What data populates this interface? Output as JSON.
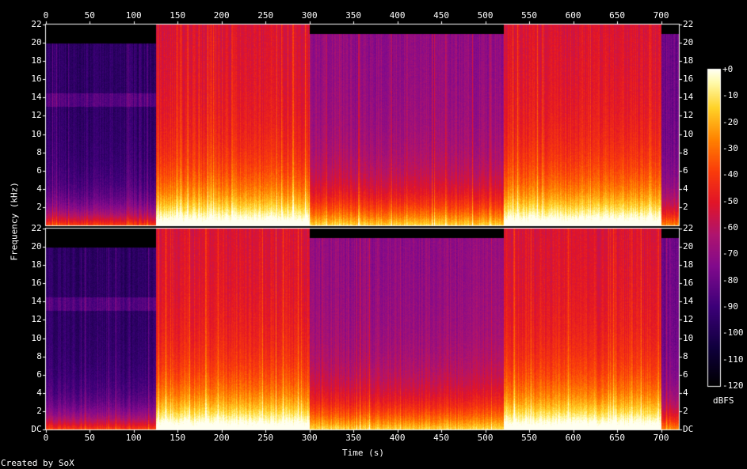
{
  "chart_data": {
    "type": "heatmap",
    "credit": "Created by SoX",
    "xlabel": "Time (s)",
    "ylabel": "Frequency (kHz)",
    "colorbar_label": "dBFS",
    "x_ticks": [
      "0",
      "50",
      "100",
      "150",
      "200",
      "250",
      "300",
      "350",
      "400",
      "450",
      "500",
      "550",
      "600",
      "650",
      "700"
    ],
    "x_range": [
      0,
      720
    ],
    "y_ticks_left": [
      "22",
      "20",
      "18",
      "16",
      "14",
      "12",
      "10",
      "8",
      "6",
      "4",
      "2"
    ],
    "y_ticks_left_bottom": [
      "22",
      "20",
      "18",
      "16",
      "14",
      "12",
      "10",
      "8",
      "6",
      "4",
      "2",
      "DC"
    ],
    "y_ticks_right_top": [
      "22",
      "20",
      "18",
      "16",
      "14",
      "12",
      "10",
      "8",
      "6",
      "4",
      "2"
    ],
    "y_ticks_right_bottom": [
      "22",
      "20",
      "18",
      "16",
      "14",
      "12",
      "10",
      "8",
      "6",
      "4",
      "2",
      "DC"
    ],
    "y_range_khz": [
      0,
      22
    ],
    "channels": 2,
    "colorbar_ticks": [
      "+0",
      "-10",
      "-20",
      "-30",
      "-40",
      "-50",
      "-60",
      "-70",
      "-80",
      "-90",
      "-100",
      "-110",
      "-120"
    ],
    "colorbar_range_db": [
      -120,
      0
    ],
    "segments": [
      {
        "start": 0,
        "end": 125,
        "level": "quiet",
        "cutoff_khz": 20
      },
      {
        "start": 125,
        "end": 300,
        "level": "loud",
        "cutoff_khz": 22
      },
      {
        "start": 300,
        "end": 520,
        "level": "medium",
        "cutoff_khz": 21
      },
      {
        "start": 520,
        "end": 700,
        "level": "loud",
        "cutoff_khz": 22
      },
      {
        "start": 700,
        "end": 720,
        "level": "fade",
        "cutoff_khz": 21
      }
    ]
  }
}
